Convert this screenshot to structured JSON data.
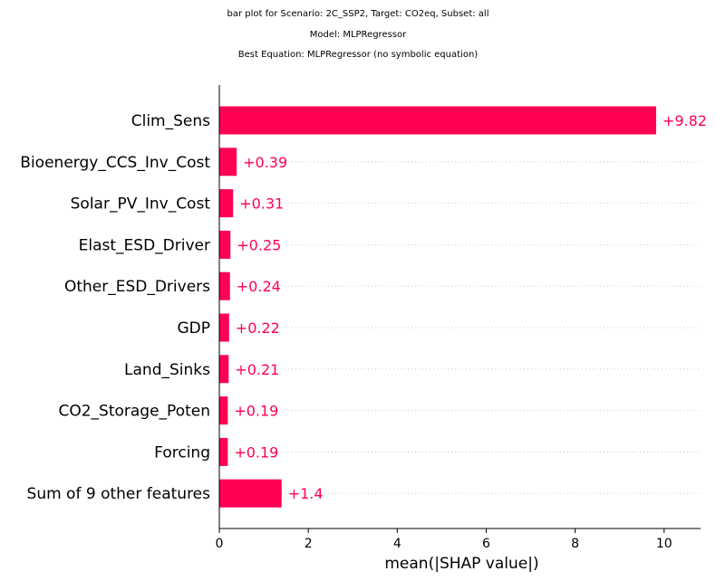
{
  "titles": {
    "line1": "bar plot for Scenario: 2C_SSP2, Target: CO2eq, Subset: all",
    "line2": "Model: MLPRegressor",
    "line3": "Best Equation: MLPRegressor (no symbolic equation)"
  },
  "colors": {
    "bar": "#ff0052",
    "label": "#ff0052",
    "grid": "#cccccc",
    "axis": "#000000"
  },
  "chart_data": {
    "type": "bar",
    "orientation": "horizontal",
    "categories": [
      "Clim_Sens",
      "Bioenergy_CCS_Inv_Cost",
      "Solar_PV_Inv_Cost",
      "Elast_ESD_Driver",
      "Other_ESD_Drivers",
      "GDP",
      "Land_Sinks",
      "CO2_Storage_Poten",
      "Forcing",
      "Sum of 9 other features"
    ],
    "values": [
      9.82,
      0.39,
      0.31,
      0.25,
      0.24,
      0.22,
      0.21,
      0.19,
      0.19,
      1.4
    ],
    "value_labels": [
      "+9.82",
      "+0.39",
      "+0.31",
      "+0.25",
      "+0.24",
      "+0.22",
      "+0.21",
      "+0.19",
      "+0.19",
      "+1.4"
    ],
    "xlabel": "mean(|SHAP value|)",
    "ylabel": "",
    "xlim": [
      0,
      10.82
    ],
    "xticks": [
      0,
      2,
      4,
      6,
      8,
      10
    ],
    "grid": "dotted horizontal row guides",
    "legend": "none"
  }
}
